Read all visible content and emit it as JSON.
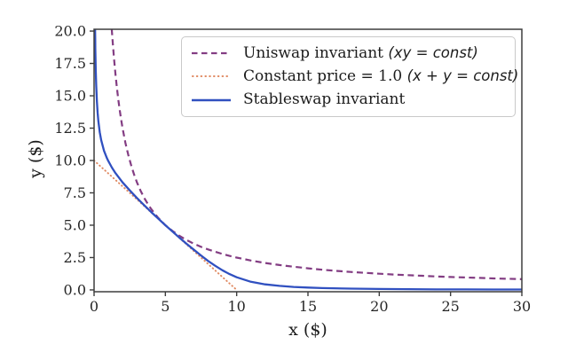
{
  "figure": {
    "xlabel": "x ($)",
    "ylabel": "y ($)"
  },
  "legend": {
    "position": "upper right",
    "items": [
      {
        "label": "Uniswap invariant ",
        "math": "(xy = const)"
      },
      {
        "label": "Constant price = 1.0 ",
        "math": "(x + y = const)"
      },
      {
        "label": "Stableswap invariant",
        "math": ""
      }
    ]
  },
  "chart_data": {
    "type": "line",
    "title": "",
    "xlabel": "x ($)",
    "ylabel": "y ($)",
    "xlim": [
      0,
      30
    ],
    "ylim": [
      0,
      20
    ],
    "xticks": [
      0,
      5,
      10,
      15,
      20,
      25,
      30
    ],
    "xtick_labels": [
      "0",
      "5",
      "10",
      "15",
      "20",
      "25",
      "30"
    ],
    "yticks": [
      0,
      2.5,
      5,
      7.5,
      10,
      12.5,
      15,
      17.5,
      20
    ],
    "ytick_labels": [
      "0.0",
      "2.5",
      "5.0",
      "7.5",
      "10.0",
      "12.5",
      "15.0",
      "17.5",
      "20.0"
    ],
    "grid": false,
    "legend_position": "upper right",
    "frame_color": "#3d3d3d",
    "series": [
      {
        "name": "Uniswap invariant (xy = const)",
        "style": "dashed",
        "color": "#833d83",
        "width": 2.2,
        "points": [
          [
            1.24,
            20.16
          ],
          [
            1.3,
            19.23
          ],
          [
            1.4,
            17.86
          ],
          [
            1.5,
            16.67
          ],
          [
            1.6,
            15.63
          ],
          [
            1.7,
            14.71
          ],
          [
            1.8,
            13.89
          ],
          [
            1.9,
            13.16
          ],
          [
            2,
            12.5
          ],
          [
            2.2,
            11.36
          ],
          [
            2.4,
            10.42
          ],
          [
            2.6,
            9.62
          ],
          [
            2.8,
            8.93
          ],
          [
            3,
            8.33
          ],
          [
            3.25,
            7.69
          ],
          [
            3.5,
            7.14
          ],
          [
            3.75,
            6.67
          ],
          [
            4,
            6.25
          ],
          [
            4.5,
            5.56
          ],
          [
            5,
            5
          ],
          [
            5.5,
            4.55
          ],
          [
            6,
            4.17
          ],
          [
            6.5,
            3.85
          ],
          [
            7,
            3.57
          ],
          [
            7.5,
            3.33
          ],
          [
            8,
            3.13
          ],
          [
            8.5,
            2.94
          ],
          [
            9,
            2.78
          ],
          [
            9.5,
            2.63
          ],
          [
            10,
            2.5
          ],
          [
            11,
            2.27
          ],
          [
            12,
            2.08
          ],
          [
            13,
            1.92
          ],
          [
            14,
            1.79
          ],
          [
            15,
            1.67
          ],
          [
            16,
            1.56
          ],
          [
            17,
            1.47
          ],
          [
            18,
            1.39
          ],
          [
            19,
            1.32
          ],
          [
            20,
            1.25
          ],
          [
            21,
            1.19
          ],
          [
            22,
            1.14
          ],
          [
            23,
            1.09
          ],
          [
            24,
            1.04
          ],
          [
            25,
            1.0
          ],
          [
            26,
            0.96
          ],
          [
            27,
            0.93
          ],
          [
            28,
            0.89
          ],
          [
            29,
            0.86
          ],
          [
            30,
            0.83
          ]
        ]
      },
      {
        "name": "Constant price = 1.0 (x + y = const)",
        "style": "dotted",
        "color": "#e08a62",
        "width": 1.9,
        "points": [
          [
            0,
            10
          ],
          [
            10,
            0
          ]
        ]
      },
      {
        "name": "Stableswap invariant",
        "style": "solid",
        "color": "#3050c0",
        "width": 2.3,
        "points": [
          [
            0.07,
            20.3
          ],
          [
            0.08,
            19.37
          ],
          [
            0.09,
            18.61
          ],
          [
            0.1,
            17.97
          ],
          [
            0.12,
            16.94
          ],
          [
            0.15,
            15.81
          ],
          [
            0.2,
            14.55
          ],
          [
            0.25,
            13.69
          ],
          [
            0.3,
            13.06
          ],
          [
            0.4,
            12.18
          ],
          [
            0.5,
            11.58
          ],
          [
            0.7,
            10.75
          ],
          [
            0.9,
            10.18
          ],
          [
            1,
            9.95
          ],
          [
            1.25,
            9.45
          ],
          [
            1.5,
            9.03
          ],
          [
            2,
            8.31
          ],
          [
            2.5,
            7.69
          ],
          [
            3,
            7.11
          ],
          [
            3.5,
            6.56
          ],
          [
            4,
            6.02
          ],
          [
            4.5,
            5.51
          ],
          [
            5,
            5.0
          ],
          [
            5.5,
            4.51
          ],
          [
            6,
            4.02
          ],
          [
            6.5,
            3.55
          ],
          [
            7,
            3.1
          ],
          [
            7.5,
            2.66
          ],
          [
            8,
            2.24
          ],
          [
            8.5,
            1.86
          ],
          [
            9,
            1.52
          ],
          [
            9.5,
            1.22
          ],
          [
            10,
            0.98
          ],
          [
            11,
            0.63
          ],
          [
            12,
            0.43
          ],
          [
            13,
            0.31
          ],
          [
            14,
            0.23
          ],
          [
            15,
            0.18
          ],
          [
            16,
            0.14
          ],
          [
            18,
            0.1
          ],
          [
            20,
            0.07
          ],
          [
            22,
            0.06
          ],
          [
            24,
            0.04
          ],
          [
            26,
            0.04
          ],
          [
            28,
            0.03
          ],
          [
            30,
            0.03
          ]
        ]
      }
    ]
  }
}
